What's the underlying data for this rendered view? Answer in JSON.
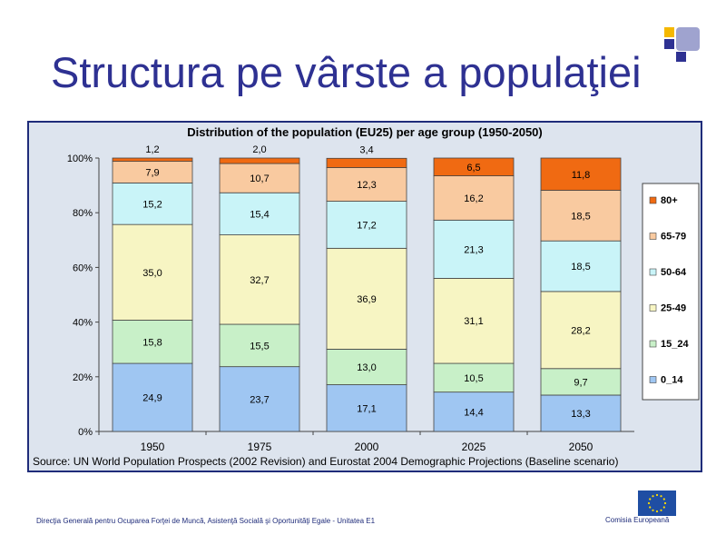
{
  "slide": {
    "title": "Structura pe vârste a populaţiei",
    "footer_left": "Direcţia Generală pentru Ocuparea Forţei de Muncă, Asistenţă Socială şi Oportunităţi Egale - Unitatea E1",
    "footer_right": "Comisia Europeană"
  },
  "chart_data": {
    "type": "bar",
    "stacked": true,
    "title": "Distribution of the population (EU25) per age group (1950-2050)",
    "source": "Source: UN World Population Prospects (2002 Revision) and Eurostat 2004 Demographic Projections (Baseline scenario)",
    "categories": [
      "1950",
      "1975",
      "2000",
      "2025",
      "2050"
    ],
    "ylim": [
      0,
      100
    ],
    "yticks": [
      "0%",
      "20%",
      "40%",
      "60%",
      "80%",
      "100%"
    ],
    "grid": false,
    "legend_position": "right",
    "series": [
      {
        "name": "0_14",
        "color": "#9fc6f2",
        "values": [
          24.9,
          23.7,
          17.1,
          14.4,
          13.3
        ],
        "labels": [
          "24,9",
          "23,7",
          "17,1",
          "14,4",
          "13,3"
        ]
      },
      {
        "name": "15_24",
        "color": "#c8f0c8",
        "values": [
          15.8,
          15.5,
          13.0,
          10.5,
          9.7
        ],
        "labels": [
          "15,8",
          "15,5",
          "13,0",
          "10,5",
          "9,7"
        ]
      },
      {
        "name": "25-49",
        "color": "#f7f5c3",
        "values": [
          35.0,
          32.7,
          36.9,
          31.1,
          28.2
        ],
        "labels": [
          "35,0",
          "32,7",
          "36,9",
          "31,1",
          "28,2"
        ]
      },
      {
        "name": "50-64",
        "color": "#c9f4f8",
        "values": [
          15.2,
          15.4,
          17.2,
          21.3,
          18.5
        ],
        "labels": [
          "15,2",
          "15,4",
          "17,2",
          "21,3",
          "18,5"
        ]
      },
      {
        "name": "65-79",
        "color": "#f9caa0",
        "values": [
          7.9,
          10.7,
          12.3,
          16.2,
          18.5
        ],
        "labels": [
          "7,9",
          "10,7",
          "12,3",
          "16,2",
          "18,5"
        ]
      },
      {
        "name": "80+",
        "color": "#f06a12",
        "values": [
          1.2,
          2.0,
          3.4,
          6.5,
          11.8
        ],
        "labels": [
          "1,2",
          "2,0",
          "3,4",
          "6,5",
          "11,8"
        ]
      }
    ]
  }
}
